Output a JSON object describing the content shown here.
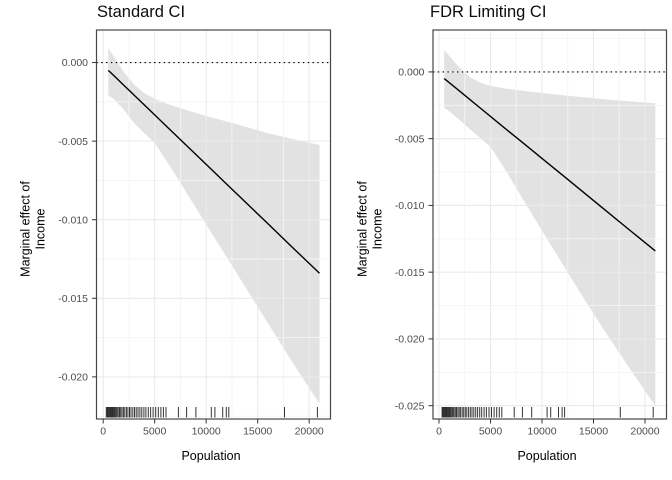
{
  "colors": {
    "background": "#ffffff",
    "band": "#e2e2e2",
    "grid_major": "#eaeaea",
    "grid_minor": "#f4f4f4",
    "line": "#000000",
    "zero_line": "#000000",
    "panel_border": "#474747",
    "tick": "#333333",
    "tick_label": "#4d4d4d",
    "text": "#000000",
    "rug": "#1f1f1f"
  },
  "rug_population": [
    300,
    380,
    450,
    520,
    600,
    680,
    750,
    820,
    900,
    980,
    1060,
    1150,
    1250,
    1350,
    1460,
    1580,
    1700,
    1830,
    1960,
    2100,
    2250,
    2400,
    2550,
    2700,
    2870,
    3040,
    3200,
    3380,
    3560,
    3750,
    3950,
    4150,
    4380,
    4600,
    4850,
    5100,
    5350,
    5600,
    5850,
    6100,
    7300,
    8100,
    9000,
    10500,
    10850,
    11600,
    11950,
    12200,
    17600,
    20800
  ],
  "chart_data": [
    {
      "type": "line",
      "title": "Standard CI",
      "xlabel": "Population",
      "ylabel": "Marginal effect of\nIncome",
      "x_view": [
        -650,
        22070
      ],
      "y_view": [
        0.00207,
        -0.02268
      ],
      "x_tick_values": [
        0,
        5000,
        10000,
        15000,
        20000
      ],
      "x_tick_labels": [
        "0",
        "5000",
        "10000",
        "15000",
        "20000"
      ],
      "y_tick_values": [
        0,
        -0.005,
        -0.01,
        -0.015,
        -0.02
      ],
      "y_tick_labels": [
        "0.000",
        "-0.005",
        "-0.010",
        "-0.015",
        "-0.020"
      ],
      "x_minor": [
        2500,
        7500,
        12500,
        17500
      ],
      "y_minor": [
        -0.0025,
        -0.0075,
        -0.0125,
        -0.0175,
        -0.0225
      ],
      "zero_line_y": 0,
      "series": {
        "x": [
          500,
          1000,
          2000,
          3000,
          4000,
          5000,
          6500,
          8000,
          10000,
          12000,
          14000,
          16000,
          18500,
          21000
        ],
        "mean": [
          -0.0005,
          -0.00081,
          -0.00144,
          -0.00207,
          -0.0027,
          -0.00333,
          -0.00428,
          -0.00522,
          -0.00648,
          -0.00774,
          -0.009,
          -0.01026,
          -0.01184,
          -0.01341
        ],
        "upper": [
          0.00095,
          0.0004,
          -0.0006,
          -0.0014,
          -0.00195,
          -0.0023,
          -0.0027,
          -0.003,
          -0.0034,
          -0.00375,
          -0.00412,
          -0.0045,
          -0.00488,
          -0.00525
        ],
        "lower": [
          -0.0021,
          -0.0023,
          -0.003,
          -0.00385,
          -0.0045,
          -0.00512,
          -0.0066,
          -0.0082,
          -0.0103,
          -0.0124,
          -0.0145,
          -0.0166,
          -0.0192,
          -0.0217
        ]
      }
    },
    {
      "type": "line",
      "title": "FDR Limiting CI",
      "xlabel": "Population",
      "ylabel": "Marginal effect of\nIncome",
      "x_view": [
        -583,
        22090
      ],
      "y_view": [
        0.00314,
        -0.026
      ],
      "x_tick_values": [
        0,
        5000,
        10000,
        15000,
        20000
      ],
      "x_tick_labels": [
        "0",
        "5000",
        "10000",
        "15000",
        "20000"
      ],
      "y_tick_values": [
        0,
        -0.005,
        -0.01,
        -0.015,
        -0.02,
        -0.025
      ],
      "y_tick_labels": [
        "0.000",
        "-0.005",
        "-0.010",
        "-0.015",
        "-0.020",
        "-0.025"
      ],
      "x_minor": [
        2500,
        7500,
        12500,
        17500
      ],
      "y_minor": [
        0.0025,
        -0.0025,
        -0.0075,
        -0.0125,
        -0.0175,
        -0.0225
      ],
      "zero_line_y": 0,
      "series": {
        "x": [
          500,
          1000,
          2000,
          3000,
          4000,
          5000,
          6500,
          8000,
          10000,
          12000,
          14000,
          16000,
          18500,
          21000
        ],
        "mean": [
          -0.0005,
          -0.00081,
          -0.00144,
          -0.00207,
          -0.0027,
          -0.00333,
          -0.00428,
          -0.00522,
          -0.00648,
          -0.00774,
          -0.009,
          -0.01026,
          -0.01184,
          -0.01341
        ],
        "upper": [
          0.00165,
          0.0012,
          0.0003,
          -0.0004,
          -0.0008,
          -0.00105,
          -0.00125,
          -0.0014,
          -0.00158,
          -0.00175,
          -0.0019,
          -0.00205,
          -0.0022,
          -0.00235
        ],
        "lower": [
          -0.0027,
          -0.00295,
          -0.0036,
          -0.0043,
          -0.00495,
          -0.0056,
          -0.0074,
          -0.00935,
          -0.0119,
          -0.0144,
          -0.0169,
          -0.0193,
          -0.0222,
          -0.025
        ]
      }
    }
  ]
}
